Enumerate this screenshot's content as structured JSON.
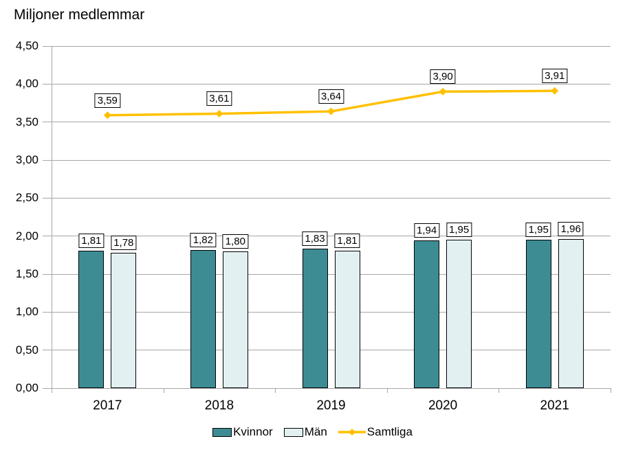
{
  "title": "Miljoner medlemmar",
  "chart_data": {
    "type": "combo",
    "title": "Miljoner medlemmar",
    "categories": [
      "2017",
      "2018",
      "2019",
      "2020",
      "2021"
    ],
    "series": [
      {
        "name": "Kvinnor",
        "type": "bar",
        "color": "#3D8C94",
        "values": [
          1.81,
          1.82,
          1.83,
          1.94,
          1.95
        ],
        "labels": [
          "1,81",
          "1,82",
          "1,83",
          "1,94",
          "1,95"
        ]
      },
      {
        "name": "Män",
        "type": "bar",
        "color": "#E2F0F1",
        "values": [
          1.78,
          1.8,
          1.81,
          1.95,
          1.96
        ],
        "labels": [
          "1,78",
          "1,80",
          "1,81",
          "1,95",
          "1,96"
        ]
      },
      {
        "name": "Samtliga",
        "type": "line",
        "color": "#FFC000",
        "values": [
          3.59,
          3.61,
          3.64,
          3.9,
          3.91
        ],
        "labels": [
          "3,59",
          "3,61",
          "3,64",
          "3,90",
          "3,91"
        ]
      }
    ],
    "y_axis": {
      "min": 0,
      "max": 4.5,
      "step": 0.5,
      "tick_labels": [
        "0,00",
        "0,50",
        "1,00",
        "1,50",
        "2,00",
        "2,50",
        "3,00",
        "3,50",
        "4,00",
        "4,50"
      ]
    },
    "grid": true,
    "legend_position": "bottom",
    "colors": {
      "grid": "#A6A6A6",
      "text": "#000000",
      "data_label_bg": "#FFFFFF",
      "data_label_border": "#000000"
    }
  }
}
